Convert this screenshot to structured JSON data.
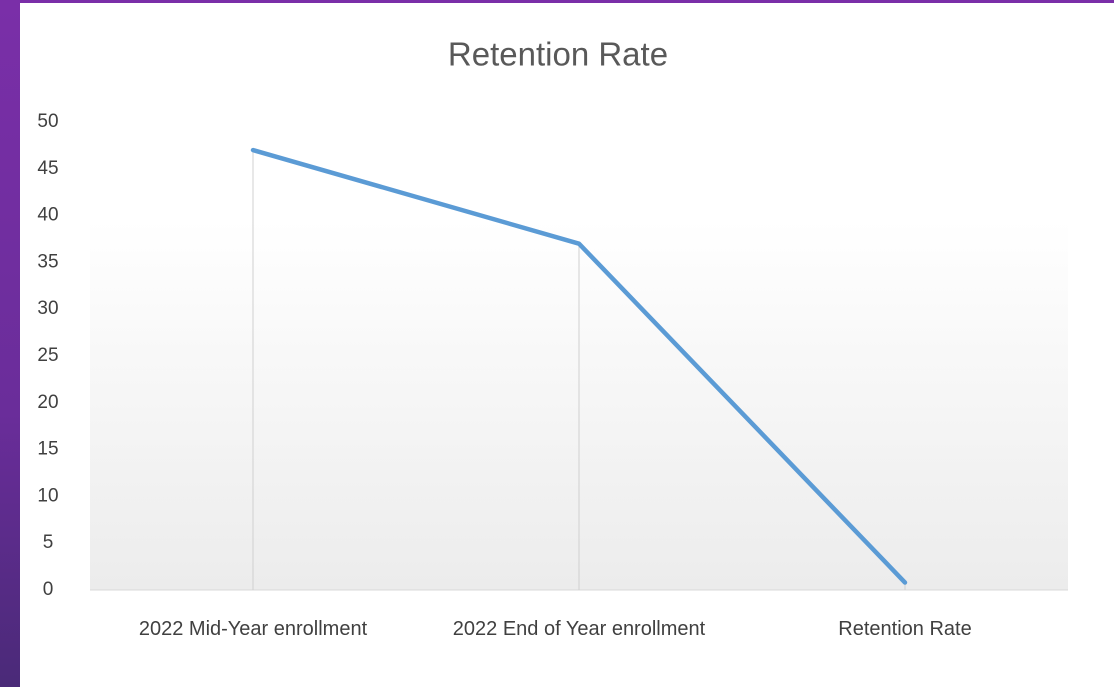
{
  "chart_data": {
    "type": "line",
    "title": "Retention Rate",
    "categories": [
      "2022 Mid-Year enrollment",
      "2022 End of Year enrollment",
      "Retention Rate"
    ],
    "values": [
      47,
      37,
      0.8
    ],
    "color": "#5b9bd5",
    "ylim": [
      0,
      50
    ],
    "yticks": [
      0,
      5,
      10,
      15,
      20,
      25,
      30,
      35,
      40,
      45,
      50
    ],
    "grid": false,
    "drop_lines": true
  }
}
